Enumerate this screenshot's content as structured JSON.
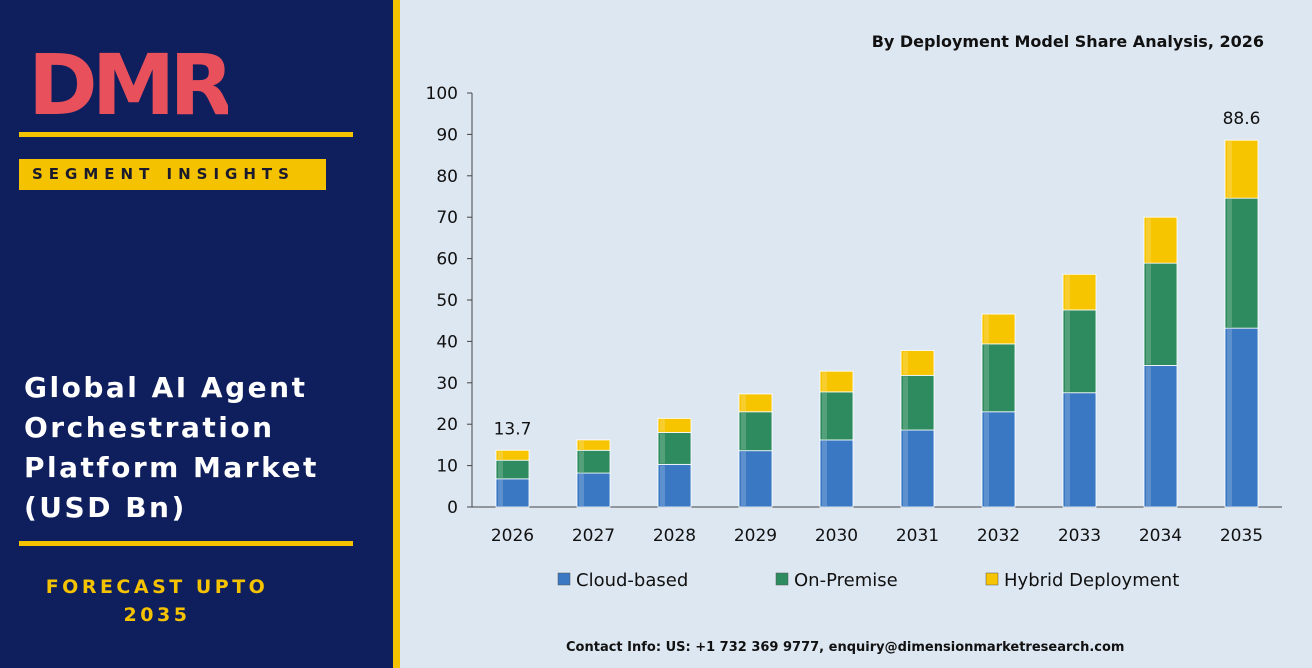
{
  "brand": {
    "logo_text": "DMR"
  },
  "left_panel": {
    "segment_tag": "SEGMENT INSIGHTS",
    "market_title": "Global AI Agent\nOrchestration\nPlatform Market\n(USD Bn)",
    "forecast": "FORECAST UPTO\n2035"
  },
  "colors": {
    "panel_bg": "#0f1f5e",
    "gold": "#f5c200",
    "cloud": "#3a78c3",
    "on_premise": "#2e8b5f",
    "hybrid": "#f7c400"
  },
  "chart_data": {
    "type": "bar",
    "stacked": true,
    "title": "By Deployment Model Share Analysis, 2026",
    "categories": [
      "2026",
      "2027",
      "2028",
      "2029",
      "2030",
      "2031",
      "2032",
      "2033",
      "2034",
      "2035"
    ],
    "series": [
      {
        "name": "Cloud-based",
        "values": [
          6.8,
          8.2,
          10.3,
          13.6,
          16.2,
          18.6,
          23.0,
          27.6,
          34.2,
          43.2
        ]
      },
      {
        "name": "On-Premise",
        "values": [
          4.5,
          5.5,
          7.7,
          9.4,
          11.6,
          13.2,
          16.4,
          20.0,
          24.7,
          31.4
        ]
      },
      {
        "name": "Hybrid Deployment",
        "values": [
          2.4,
          2.5,
          3.4,
          4.3,
          5.0,
          6.0,
          7.2,
          8.6,
          11.1,
          14.0
        ]
      }
    ],
    "data_labels": [
      {
        "category": "2026",
        "text": "13.7"
      },
      {
        "category": "2035",
        "text": "88.6"
      }
    ],
    "ylim": [
      0,
      100
    ],
    "yticks": [
      0,
      10,
      20,
      30,
      40,
      50,
      60,
      70,
      80,
      90,
      100
    ],
    "xlabel": "",
    "ylabel": "",
    "grid": false,
    "legend": "bottom"
  },
  "footer": {
    "contact": "Contact Info: US: +1 732 369 9777, enquiry@dimensionmarketresearch.com"
  }
}
